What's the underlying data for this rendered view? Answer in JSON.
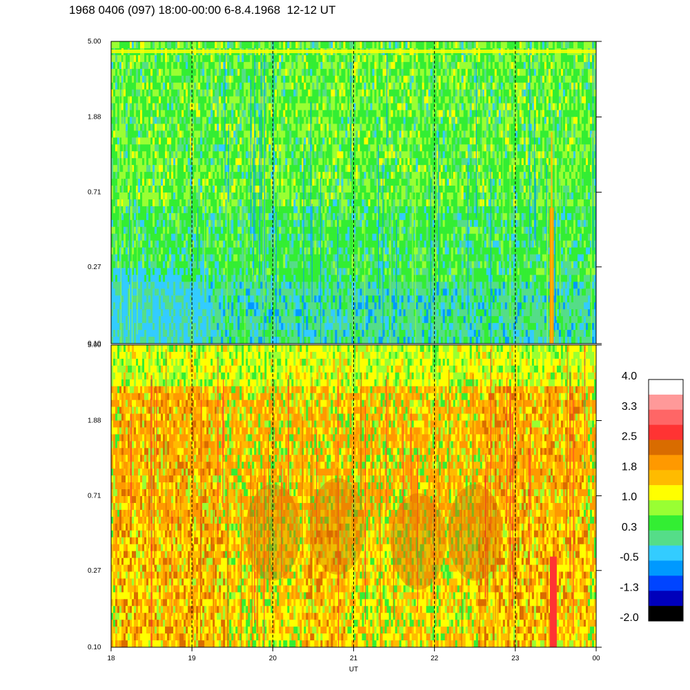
{
  "title": "1968 0406 (097) 18:00-00:00 6-8.4.1968  12-12 UT",
  "chart_data": [
    {
      "type": "heatmap",
      "panel": "top",
      "y_ticks": [
        "5.00",
        "1.88",
        "0.71",
        "0.27",
        "0.10"
      ],
      "y_range": [
        0.1,
        5.0
      ],
      "y_scale": "log",
      "x_range": [
        18,
        24
      ],
      "vertical_dashed_lines_at": [
        19,
        20,
        21,
        22,
        23
      ],
      "dominant_levels": [
        "0.3",
        "1.0",
        "-0.5"
      ]
    },
    {
      "type": "heatmap",
      "panel": "bottom",
      "y_ticks": [
        "5.00",
        "1.88",
        "0.71",
        "0.27",
        "0.10"
      ],
      "y_range": [
        0.1,
        5.0
      ],
      "y_scale": "log",
      "x_range": [
        18,
        24
      ],
      "x_ticks": [
        "18",
        "19",
        "20",
        "21",
        "22",
        "23",
        "00"
      ],
      "xlabel": "UT",
      "vertical_dashed_lines_at": [
        19,
        20,
        21,
        22,
        23
      ],
      "dominant_levels": [
        "1.8",
        "1.0",
        "2.5"
      ]
    }
  ],
  "colorbar": {
    "labels": [
      "4.0",
      "3.3",
      "2.5",
      "1.8",
      "1.0",
      "0.3",
      "-0.5",
      "-1.3",
      "-2.0"
    ],
    "colors": [
      "#ffffff",
      "#ff9999",
      "#ff6666",
      "#ff3333",
      "#d96c00",
      "#ff9900",
      "#ffbb00",
      "#ffff00",
      "#99ff33",
      "#33ee33",
      "#55dd88",
      "#33ccff",
      "#0099ff",
      "#0044ff",
      "#0000bb",
      "#000000"
    ]
  }
}
